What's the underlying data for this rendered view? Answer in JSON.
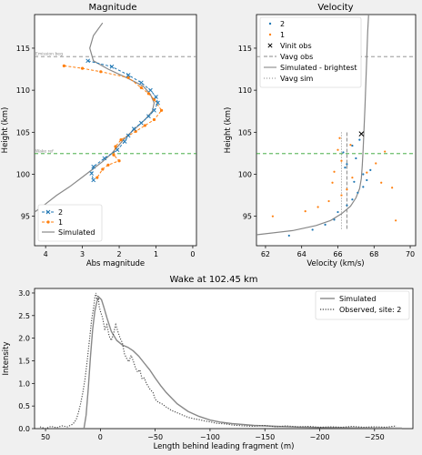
{
  "colors": {
    "blue": "#1f77b4",
    "orange": "#ff7f0e",
    "green": "#2ca02c",
    "gray": "#888888",
    "dark": "#404040",
    "bg": "#f0f0f0"
  },
  "chart_data": [
    {
      "type": "line",
      "title": "Magnitude",
      "xlabel": "Abs magnitude",
      "ylabel": "Height (km)",
      "xlim": [
        4.3,
        -0.1
      ],
      "ylim": [
        91.5,
        119
      ],
      "xticks": [
        "4",
        "3",
        "2",
        "1",
        "0"
      ],
      "yticks": [
        "95",
        "100",
        "105",
        "110",
        "115"
      ],
      "hlines": [
        {
          "y": 114,
          "label": "Emission beg",
          "color": "gray"
        },
        {
          "y": 102.45,
          "label": "Wake ref",
          "color": "green"
        }
      ],
      "legend": [
        {
          "name": "2",
          "style": "x-line",
          "color": "blue"
        },
        {
          "name": "1",
          "style": "o-line",
          "color": "orange"
        },
        {
          "name": "Simulated",
          "style": "line",
          "color": "gray"
        }
      ],
      "series": [
        {
          "name": "2",
          "points": [
            [
              2.85,
              113.5
            ],
            [
              2.2,
              112.8
            ],
            [
              1.75,
              111.8
            ],
            [
              1.4,
              110.9
            ],
            [
              1.15,
              110.0
            ],
            [
              1.0,
              109.2
            ],
            [
              0.95,
              108.5
            ],
            [
              1.05,
              107.6
            ],
            [
              1.2,
              106.9
            ],
            [
              1.4,
              106.1
            ],
            [
              1.6,
              105.4
            ],
            [
              1.75,
              104.6
            ],
            [
              1.85,
              103.9
            ],
            [
              2.05,
              102.9
            ],
            [
              2.4,
              101.9
            ],
            [
              2.7,
              100.9
            ],
            [
              2.75,
              100.1
            ],
            [
              2.7,
              99.3
            ]
          ]
        },
        {
          "name": "1",
          "points": [
            [
              3.5,
              112.9
            ],
            [
              3.0,
              112.6
            ],
            [
              2.5,
              112.2
            ],
            [
              1.75,
              111.5
            ],
            [
              1.4,
              110.3
            ],
            [
              1.2,
              109.6
            ],
            [
              1.05,
              108.9
            ],
            [
              0.85,
              107.6
            ],
            [
              1.05,
              106.5
            ],
            [
              1.3,
              105.8
            ],
            [
              1.55,
              105.1
            ],
            [
              1.95,
              104.1
            ],
            [
              2.1,
              103.3
            ],
            [
              2.15,
              102.3
            ],
            [
              2.0,
              101.6
            ],
            [
              2.3,
              101.1
            ],
            [
              2.45,
              100.6
            ],
            [
              2.6,
              99.6
            ]
          ]
        },
        {
          "name": "Simulated",
          "points": [
            [
              2.45,
              118
            ],
            [
              2.7,
              116.5
            ],
            [
              2.8,
              115
            ],
            [
              2.7,
              113.5
            ],
            [
              2.3,
              112.5
            ],
            [
              1.8,
              111.5
            ],
            [
              1.35,
              110.5
            ],
            [
              1.15,
              109.5
            ],
            [
              1.05,
              108.5
            ],
            [
              1.1,
              107.5
            ],
            [
              1.3,
              106.5
            ],
            [
              1.55,
              105.5
            ],
            [
              1.8,
              104.5
            ],
            [
              2.0,
              103.5
            ],
            [
              2.2,
              102.5
            ],
            [
              2.45,
              101.5
            ],
            [
              2.75,
              100.5
            ],
            [
              3.05,
              99.5
            ],
            [
              3.35,
              98.5
            ],
            [
              3.7,
              97.5
            ],
            [
              4.05,
              96.3
            ],
            [
              4.3,
              95.5
            ]
          ]
        }
      ]
    },
    {
      "type": "scatter",
      "title": "Velocity",
      "xlabel": "Velocity (km/s)",
      "ylabel": "Height (km)",
      "xlim": [
        61.5,
        70.3
      ],
      "ylim": [
        91.5,
        119
      ],
      "xticks": [
        "62",
        "64",
        "66",
        "68",
        "70"
      ],
      "yticks": [
        "95",
        "100",
        "105",
        "110",
        "115"
      ],
      "hlines": [
        {
          "y": 114,
          "color": "gray"
        },
        {
          "y": 102.45,
          "color": "green"
        }
      ],
      "vlines": [
        {
          "x": 66.5,
          "y_range": [
            93.5,
            105.0
          ],
          "label": "Vavg obs",
          "style": "dashed",
          "color": "gray"
        },
        {
          "x": 66.2,
          "y_range": [
            93.5,
            105.0
          ],
          "label": "Vavg sim",
          "style": "dotted",
          "color": "gray"
        }
      ],
      "vinit_obs": {
        "x": 67.3,
        "y": 104.8,
        "label": "Vinit obs"
      },
      "legend": [
        {
          "name": "2",
          "style": "dot",
          "color": "blue"
        },
        {
          "name": "1",
          "style": "dot",
          "color": "orange"
        },
        {
          "name": "Vinit obs",
          "style": "x",
          "color": "dark"
        },
        {
          "name": "Vavg obs",
          "style": "dashed",
          "color": "gray"
        },
        {
          "name": "Simulated - brightest",
          "style": "line",
          "color": "gray"
        },
        {
          "name": "Vavg sim",
          "style": "dotted",
          "color": "gray"
        }
      ],
      "series": [
        {
          "name": "2",
          "points": [
            [
              63.3,
              92.7
            ],
            [
              64.6,
              93.4
            ],
            [
              65.3,
              94.0
            ],
            [
              65.8,
              94.6
            ],
            [
              66.0,
              95.5
            ],
            [
              66.5,
              96.3
            ],
            [
              66.8,
              97.0
            ],
            [
              67.1,
              97.8
            ],
            [
              67.4,
              98.5
            ],
            [
              67.6,
              99.3
            ],
            [
              67.4,
              100.0
            ],
            [
              67.8,
              100.5
            ],
            [
              66.5,
              101.2
            ],
            [
              67.0,
              101.9
            ],
            [
              66.3,
              102.6
            ],
            [
              66.8,
              103.4
            ],
            [
              67.2,
              104.1
            ],
            [
              66.4,
              100.8
            ],
            [
              66.9,
              99.1
            ]
          ]
        },
        {
          "name": "1",
          "points": [
            [
              62.4,
              95.0
            ],
            [
              64.2,
              95.6
            ],
            [
              64.9,
              96.1
            ],
            [
              65.5,
              96.8
            ],
            [
              66.2,
              97.5
            ],
            [
              66.5,
              98.2
            ],
            [
              65.7,
              99.0
            ],
            [
              66.8,
              99.6
            ],
            [
              67.6,
              100.2
            ],
            [
              68.1,
              101.3
            ],
            [
              68.4,
              99.0
            ],
            [
              69.0,
              98.4
            ],
            [
              69.2,
              94.5
            ],
            [
              65.8,
              100.3
            ],
            [
              66.2,
              101.6
            ],
            [
              66.0,
              102.9
            ],
            [
              66.7,
              103.5
            ],
            [
              66.1,
              104.3
            ],
            [
              68.6,
              102.7
            ]
          ]
        },
        {
          "name": "Simulated - brightest",
          "points": [
            [
              61.5,
              92.8
            ],
            [
              63.5,
              93.3
            ],
            [
              64.8,
              93.9
            ],
            [
              65.6,
              94.5
            ],
            [
              66.2,
              95.3
            ],
            [
              66.7,
              96.2
            ],
            [
              67.0,
              97.2
            ],
            [
              67.2,
              98.3
            ],
            [
              67.3,
              99.5
            ],
            [
              67.35,
              101
            ],
            [
              67.4,
              103
            ],
            [
              67.45,
              105.5
            ],
            [
              67.5,
              108
            ],
            [
              67.55,
              111
            ],
            [
              67.6,
              114
            ],
            [
              67.65,
              117
            ],
            [
              67.7,
              119
            ]
          ]
        }
      ]
    },
    {
      "type": "line",
      "title": "Wake at 102.45 km",
      "xlabel": "Length behind leading fragment (m)",
      "ylabel": "Intensity",
      "xlim": [
        60,
        -285
      ],
      "ylim": [
        0,
        3.1
      ],
      "xticks": [
        "50",
        "0",
        "−50",
        "−100",
        "−150",
        "−200",
        "−250"
      ],
      "yticks": [
        "0.0",
        "0.5",
        "1.0",
        "1.5",
        "2.0",
        "2.5",
        "3.0"
      ],
      "legend": [
        {
          "name": "Simulated",
          "style": "line",
          "color": "gray"
        },
        {
          "name": "Observed, site: 2",
          "style": "dotted",
          "color": "dark"
        }
      ],
      "series": [
        {
          "name": "Simulated",
          "points": [
            [
              15,
              0.0
            ],
            [
              13,
              0.3
            ],
            [
              11,
              0.9
            ],
            [
              9,
              1.6
            ],
            [
              7,
              2.2
            ],
            [
              5,
              2.6
            ],
            [
              3,
              2.82
            ],
            [
              1,
              2.9
            ],
            [
              -1,
              2.85
            ],
            [
              -3,
              2.7
            ],
            [
              -6,
              2.45
            ],
            [
              -10,
              2.15
            ],
            [
              -15,
              1.95
            ],
            [
              -20,
              1.85
            ],
            [
              -25,
              1.8
            ],
            [
              -30,
              1.72
            ],
            [
              -35,
              1.6
            ],
            [
              -40,
              1.45
            ],
            [
              -45,
              1.3
            ],
            [
              -50,
              1.12
            ],
            [
              -55,
              0.95
            ],
            [
              -60,
              0.8
            ],
            [
              -70,
              0.55
            ],
            [
              -80,
              0.38
            ],
            [
              -90,
              0.27
            ],
            [
              -100,
              0.19
            ],
            [
              -110,
              0.14
            ],
            [
              -120,
              0.11
            ],
            [
              -140,
              0.07
            ],
            [
              -160,
              0.05
            ],
            [
              -180,
              0.035
            ],
            [
              -200,
              0.025
            ],
            [
              -220,
              0.02
            ],
            [
              -250,
              0.015
            ],
            [
              -275,
              0.01
            ]
          ]
        },
        {
          "name": "Observed, site: 2",
          "points": [
            [
              55,
              0.04
            ],
            [
              50,
              0.0
            ],
            [
              45,
              0.05
            ],
            [
              40,
              0.02
            ],
            [
              35,
              0.06
            ],
            [
              30,
              0.04
            ],
            [
              25,
              0.1
            ],
            [
              22,
              0.2
            ],
            [
              20,
              0.35
            ],
            [
              18,
              0.55
            ],
            [
              16,
              0.8
            ],
            [
              14,
              1.1
            ],
            [
              12,
              1.5
            ],
            [
              10,
              1.95
            ],
            [
              8,
              2.4
            ],
            [
              6,
              2.7
            ],
            [
              5,
              2.9
            ],
            [
              4,
              3.0
            ],
            [
              3,
              2.85
            ],
            [
              2,
              2.95
            ],
            [
              1,
              2.7
            ],
            [
              0,
              2.6
            ],
            [
              -2,
              2.45
            ],
            [
              -4,
              2.2
            ],
            [
              -6,
              2.3
            ],
            [
              -8,
              2.05
            ],
            [
              -10,
              1.95
            ],
            [
              -12,
              2.1
            ],
            [
              -14,
              2.3
            ],
            [
              -16,
              2.15
            ],
            [
              -18,
              2.0
            ],
            [
              -20,
              1.9
            ],
            [
              -22,
              1.65
            ],
            [
              -24,
              1.55
            ],
            [
              -26,
              1.48
            ],
            [
              -28,
              1.62
            ],
            [
              -30,
              1.5
            ],
            [
              -32,
              1.35
            ],
            [
              -34,
              1.25
            ],
            [
              -36,
              1.3
            ],
            [
              -38,
              1.1
            ],
            [
              -40,
              1.12
            ],
            [
              -42,
              1.0
            ],
            [
              -45,
              0.88
            ],
            [
              -48,
              0.8
            ],
            [
              -50,
              0.65
            ],
            [
              -53,
              0.58
            ],
            [
              -56,
              0.55
            ],
            [
              -60,
              0.48
            ],
            [
              -65,
              0.4
            ],
            [
              -70,
              0.35
            ],
            [
              -75,
              0.3
            ],
            [
              -80,
              0.25
            ],
            [
              -85,
              0.22
            ],
            [
              -90,
              0.2
            ],
            [
              -95,
              0.17
            ],
            [
              -100,
              0.15
            ],
            [
              -105,
              0.12
            ],
            [
              -110,
              0.11
            ],
            [
              -115,
              0.1
            ],
            [
              -120,
              0.08
            ],
            [
              -130,
              0.06
            ],
            [
              -140,
              0.05
            ],
            [
              -150,
              0.07
            ],
            [
              -160,
              0.04
            ],
            [
              -170,
              0.06
            ],
            [
              -180,
              0.04
            ],
            [
              -190,
              0.05
            ],
            [
              -200,
              0.03
            ],
            [
              -210,
              0.04
            ],
            [
              -220,
              0.03
            ],
            [
              -230,
              0.05
            ],
            [
              -240,
              0.03
            ],
            [
              -250,
              0.04
            ],
            [
              -260,
              0.03
            ],
            [
              -270,
              0.06
            ]
          ]
        }
      ]
    }
  ]
}
